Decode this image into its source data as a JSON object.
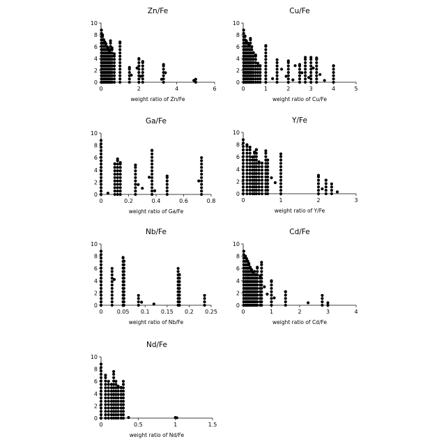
{
  "chart_data": [
    {
      "type": "scatter",
      "title": "Zn/Fe",
      "xlabel": "weight ratio of Zn/Fe",
      "ylabel": "",
      "xlim": [
        0,
        6
      ],
      "ylim": [
        0,
        10
      ],
      "xticks": [
        0,
        2,
        4,
        6
      ],
      "yticks": [
        0,
        2,
        4,
        6,
        8,
        10
      ],
      "grid": false,
      "columns": [
        [
          0.02,
          0,
          8.8
        ],
        [
          0.08,
          0,
          8.0
        ],
        [
          0.14,
          0,
          7.2
        ],
        [
          0.2,
          0,
          6.8
        ],
        [
          0.26,
          0,
          6.5
        ],
        [
          0.32,
          0,
          6.0
        ],
        [
          0.38,
          0,
          5.8
        ],
        [
          0.44,
          0,
          5.2
        ],
        [
          0.5,
          0,
          7.0
        ],
        [
          0.58,
          0,
          5.8
        ],
        [
          0.7,
          0,
          4.8
        ],
        [
          1.0,
          0,
          6.8
        ],
        [
          1.5,
          0,
          2.5
        ],
        [
          2.0,
          0,
          4.0
        ],
        [
          2.2,
          0,
          3.5
        ],
        [
          3.3,
          0,
          3.0
        ],
        [
          5.0,
          0,
          0.5
        ]
      ],
      "points": [
        [
          1.6,
          1.2
        ],
        [
          1.9,
          2.4
        ],
        [
          2.1,
          1.0
        ],
        [
          3.2,
          0.5
        ],
        [
          3.4,
          1.6
        ],
        [
          4.9,
          0.3
        ]
      ]
    },
    {
      "type": "scatter",
      "title": "Cu/Fe",
      "xlabel": "weight ratio of Cu/Fe",
      "ylabel": "",
      "xlim": [
        0,
        5
      ],
      "ylim": [
        0,
        10
      ],
      "xticks": [
        0,
        1,
        2,
        3,
        4,
        5
      ],
      "yticks": [
        0,
        2,
        4,
        6,
        8,
        10
      ],
      "grid": false,
      "columns": [
        [
          0.02,
          0,
          8.8
        ],
        [
          0.08,
          0,
          7.8
        ],
        [
          0.14,
          0,
          7.0
        ],
        [
          0.2,
          0,
          6.6
        ],
        [
          0.26,
          0,
          6.2
        ],
        [
          0.32,
          0,
          7.4
        ],
        [
          0.38,
          0,
          6.0
        ],
        [
          0.45,
          0,
          5.0
        ],
        [
          0.55,
          0,
          4.6
        ],
        [
          0.65,
          0,
          3.2
        ],
        [
          0.75,
          0,
          2.8
        ],
        [
          1.0,
          0,
          6.2
        ],
        [
          1.5,
          0,
          3.8
        ],
        [
          2.0,
          0,
          3.6
        ],
        [
          2.5,
          0,
          3.0
        ],
        [
          2.75,
          0,
          4.2
        ],
        [
          3.0,
          0,
          4.2
        ],
        [
          3.25,
          0,
          4.1
        ],
        [
          4.0,
          0,
          2.8
        ]
      ],
      "points": [
        [
          1.3,
          0.6
        ],
        [
          1.7,
          2.2
        ],
        [
          1.9,
          1.0
        ],
        [
          2.2,
          0.4
        ],
        [
          2.3,
          2.8
        ],
        [
          2.6,
          1.6
        ],
        [
          2.9,
          0.8
        ],
        [
          3.1,
          2.4
        ],
        [
          3.4,
          1.3
        ],
        [
          3.6,
          0.3
        ]
      ]
    },
    {
      "type": "scatter",
      "title": "Ga/Fe",
      "xlabel": "weight ratio of Ga/Fe",
      "ylabel": "",
      "xlim": [
        0,
        0.8
      ],
      "ylim": [
        0,
        10
      ],
      "xticks": [
        0,
        0.2,
        0.4,
        0.6,
        0.8
      ],
      "yticks": [
        0,
        2,
        4,
        6,
        8,
        10
      ],
      "grid": false,
      "columns": [
        [
          0.0,
          0,
          8.8
        ],
        [
          0.1,
          0,
          5.0
        ],
        [
          0.12,
          0,
          5.8
        ],
        [
          0.14,
          0,
          5.2
        ],
        [
          0.25,
          0,
          4.8
        ],
        [
          0.37,
          0,
          7.2
        ],
        [
          0.48,
          0,
          3.0
        ],
        [
          0.73,
          0,
          6.0
        ]
      ],
      "points": [
        [
          0.05,
          0.2
        ],
        [
          0.27,
          1.6
        ],
        [
          0.3,
          1.0
        ],
        [
          0.35,
          2.8
        ],
        [
          0.39,
          0.6
        ],
        [
          0.71,
          2.2
        ]
      ]
    },
    {
      "type": "scatter",
      "title": "Y/Fe",
      "xlabel": "weight ratio of Y/Fe",
      "ylabel": "",
      "xlim": [
        0,
        3
      ],
      "ylim": [
        0,
        10
      ],
      "xticks": [
        0,
        1,
        2,
        3
      ],
      "yticks": [
        0,
        2,
        4,
        6,
        8,
        10
      ],
      "grid": false,
      "columns": [
        [
          0.0,
          0,
          8.8
        ],
        [
          0.1,
          0,
          8.0
        ],
        [
          0.18,
          0,
          7.6
        ],
        [
          0.25,
          0,
          6.0
        ],
        [
          0.3,
          0,
          6.8
        ],
        [
          0.35,
          0,
          7.2
        ],
        [
          0.42,
          0,
          5.2
        ],
        [
          0.5,
          0,
          5.0
        ],
        [
          0.6,
          0,
          7.0
        ],
        [
          0.65,
          0,
          5.5
        ],
        [
          1.0,
          0,
          6.5
        ],
        [
          2.0,
          0,
          3.0
        ],
        [
          2.2,
          0,
          2.2
        ],
        [
          2.35,
          0,
          1.6
        ]
      ],
      "points": [
        [
          0.75,
          2.6
        ],
        [
          0.85,
          1.8
        ],
        [
          2.1,
          0.8
        ],
        [
          2.5,
          0.3
        ]
      ]
    },
    {
      "type": "scatter",
      "title": "Nb/Fe",
      "xlabel": "weight ratio of Nb/Fe",
      "ylabel": "",
      "xlim": [
        0,
        0.25
      ],
      "ylim": [
        0,
        10
      ],
      "xticks": [
        0,
        0.05,
        0.1,
        0.15,
        0.2,
        0.25
      ],
      "yticks": [
        0,
        2,
        4,
        6,
        8,
        10
      ],
      "grid": false,
      "columns": [
        [
          0.0,
          0,
          8.8
        ],
        [
          0.025,
          0,
          6.0
        ],
        [
          0.05,
          0,
          7.8
        ],
        [
          0.052,
          0,
          7.2
        ],
        [
          0.085,
          0,
          1.6
        ],
        [
          0.175,
          0,
          6.0
        ],
        [
          0.178,
          0,
          5.0
        ],
        [
          0.235,
          0,
          1.6
        ]
      ],
      "points": [
        [
          0.03,
          4.2
        ],
        [
          0.092,
          0.5
        ],
        [
          0.12,
          0.2
        ]
      ]
    },
    {
      "type": "scatter",
      "title": "Cd/Fe",
      "xlabel": "weight ratio of Cd/Fe",
      "ylabel": "",
      "xlim": [
        0,
        4
      ],
      "ylim": [
        0,
        10
      ],
      "xticks": [
        0,
        1,
        2,
        3,
        4
      ],
      "yticks": [
        0,
        2,
        4,
        6,
        8,
        10
      ],
      "grid": false,
      "columns": [
        [
          0.02,
          0,
          8.8
        ],
        [
          0.08,
          0,
          8.0
        ],
        [
          0.12,
          0,
          7.6
        ],
        [
          0.16,
          0,
          7.2
        ],
        [
          0.2,
          0,
          6.8
        ],
        [
          0.25,
          0,
          6.2
        ],
        [
          0.3,
          0,
          5.8
        ],
        [
          0.35,
          0,
          5.4
        ],
        [
          0.4,
          0,
          5.5
        ],
        [
          0.45,
          0,
          5.0
        ],
        [
          0.5,
          0,
          6.2
        ],
        [
          0.6,
          0,
          4.8
        ],
        [
          0.65,
          0,
          7.0
        ],
        [
          1.0,
          0,
          4.0
        ],
        [
          1.5,
          0,
          2.2
        ],
        [
          2.8,
          0,
          1.6
        ],
        [
          3.0,
          0,
          0.4
        ]
      ],
      "points": [
        [
          0.75,
          3.0
        ],
        [
          0.85,
          1.8
        ],
        [
          1.1,
          1.2
        ],
        [
          2.3,
          0.4
        ]
      ]
    },
    {
      "type": "scatter",
      "title": "Nd/Fe",
      "xlabel": "weight ratio of Nd/Fe",
      "ylabel": "",
      "xlim": [
        0,
        1.5
      ],
      "ylim": [
        0,
        10
      ],
      "xticks": [
        0,
        0.5,
        1,
        1.5
      ],
      "yticks": [
        0,
        2,
        4,
        6,
        8,
        10
      ],
      "grid": false,
      "columns": [
        [
          0.0,
          0,
          8.8
        ],
        [
          0.06,
          0,
          7.0
        ],
        [
          0.1,
          0,
          6.0
        ],
        [
          0.14,
          0,
          5.5
        ],
        [
          0.17,
          0,
          7.6
        ],
        [
          0.2,
          0,
          6.0
        ],
        [
          0.23,
          0,
          5.2
        ],
        [
          0.27,
          0,
          5.0
        ],
        [
          0.3,
          0,
          6.0
        ]
      ],
      "points": [
        [
          0.37,
          0.1
        ],
        [
          1.0,
          0.1
        ],
        [
          1.02,
          0.05
        ]
      ]
    }
  ]
}
